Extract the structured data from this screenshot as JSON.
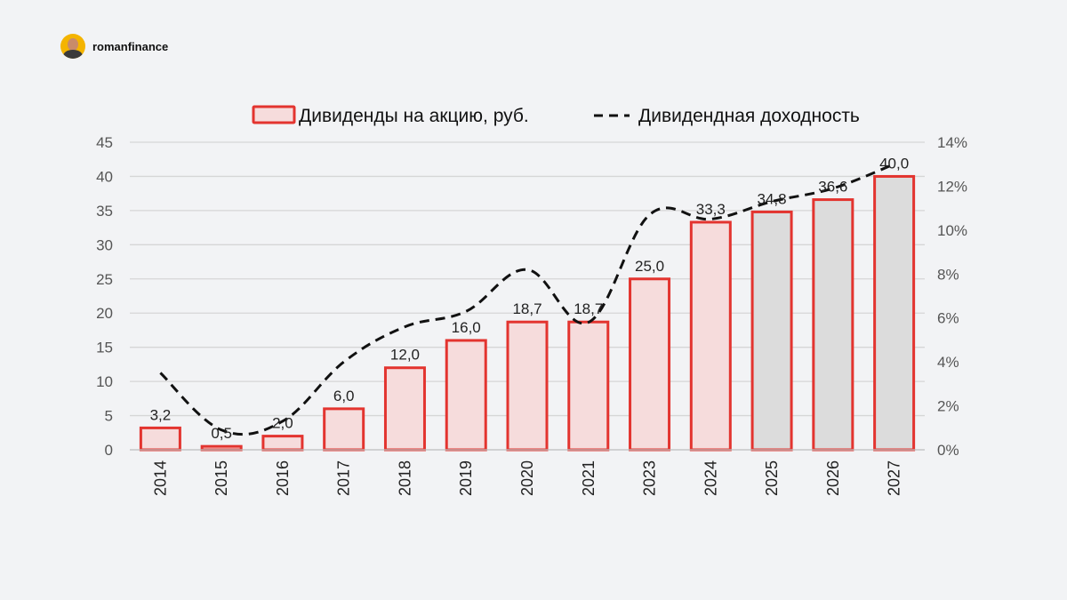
{
  "brand": {
    "name": "romanfinance",
    "avatar_icon": "user-avatar-icon"
  },
  "chart_data": {
    "type": "bar",
    "categories": [
      "2014",
      "2015",
      "2016",
      "2017",
      "2018",
      "2019",
      "2020",
      "2021",
      "2023",
      "2024",
      "2025",
      "2026",
      "2027"
    ],
    "series": [
      {
        "name": "Дивиденды на акцию, руб.",
        "type": "bar",
        "axis": "left",
        "values": [
          3.2,
          0.5,
          2.0,
          6.0,
          12.0,
          16.0,
          18.7,
          18.7,
          25.0,
          33.3,
          34.8,
          36.6,
          40.0
        ],
        "labels": [
          "3,2",
          "0,5",
          "2,0",
          "6,0",
          "12,0",
          "16,0",
          "18,7",
          "18,7",
          "25,0",
          "33,3",
          "34,8",
          "36,6",
          "40,0"
        ],
        "forecast_from_index": 10
      },
      {
        "name": "Дивидендная доходность",
        "type": "line",
        "style": "dashed",
        "axis": "right",
        "values": [
          3.5,
          0.9,
          1.3,
          4.0,
          5.6,
          6.3,
          8.2,
          5.8,
          10.7,
          10.5,
          11.3,
          11.9,
          13.0
        ]
      }
    ],
    "y_left": {
      "min": 0,
      "max": 45,
      "ticks": [
        "0",
        "5",
        "10",
        "15",
        "20",
        "25",
        "30",
        "35",
        "40",
        "45"
      ]
    },
    "y_right": {
      "min": 0,
      "max": 14,
      "ticks": [
        "0%",
        "2%",
        "4%",
        "6%",
        "8%",
        "10%",
        "12%",
        "14%"
      ]
    },
    "grid": true,
    "legend_position": "top",
    "colors": {
      "bar_fill": "#f6dcdc",
      "bar_forecast_fill": "#dcdcdc",
      "bar_stroke": "#e3342f",
      "line": "#111111",
      "grid": "#d6d6d6"
    }
  }
}
